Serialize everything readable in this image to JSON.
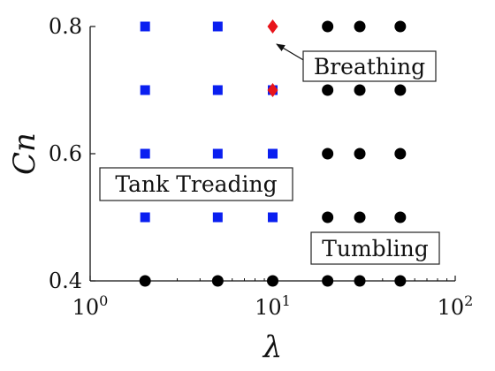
{
  "chart_data": {
    "type": "scatter",
    "xlabel": "λ",
    "ylabel": "Cn",
    "x_scale": "log",
    "xlim": [
      1,
      100
    ],
    "ylim": [
      0.4,
      0.8
    ],
    "grid": false,
    "x_ticks": [
      {
        "value": 1,
        "base": "10",
        "exp": "0"
      },
      {
        "value": 10,
        "base": "10",
        "exp": "1"
      },
      {
        "value": 100,
        "base": "10",
        "exp": "2"
      }
    ],
    "y_ticks": [
      {
        "value": 0.4,
        "label": "0.4"
      },
      {
        "value": 0.6,
        "label": "0.6"
      },
      {
        "value": 0.8,
        "label": "0.8"
      }
    ],
    "series": [
      {
        "marker": "square",
        "color": "#0a1ff0",
        "points": [
          {
            "x": 2,
            "y": 0.8
          },
          {
            "x": 5,
            "y": 0.8
          },
          {
            "x": 2,
            "y": 0.7
          },
          {
            "x": 5,
            "y": 0.7
          },
          {
            "x": 10,
            "y": 0.7
          },
          {
            "x": 2,
            "y": 0.6
          },
          {
            "x": 5,
            "y": 0.6
          },
          {
            "x": 10,
            "y": 0.6
          },
          {
            "x": 2,
            "y": 0.5
          },
          {
            "x": 5,
            "y": 0.5
          },
          {
            "x": 10,
            "y": 0.5
          }
        ]
      },
      {
        "marker": "diamond",
        "color": "#e8141b",
        "points": [
          {
            "x": 10,
            "y": 0.8
          },
          {
            "x": 10,
            "y": 0.7
          }
        ]
      },
      {
        "marker": "circle",
        "color": "#000000",
        "points": [
          {
            "x": 20,
            "y": 0.8
          },
          {
            "x": 30,
            "y": 0.8
          },
          {
            "x": 50,
            "y": 0.8
          },
          {
            "x": 20,
            "y": 0.7
          },
          {
            "x": 30,
            "y": 0.7
          },
          {
            "x": 50,
            "y": 0.7
          },
          {
            "x": 20,
            "y": 0.6
          },
          {
            "x": 30,
            "y": 0.6
          },
          {
            "x": 50,
            "y": 0.6
          },
          {
            "x": 20,
            "y": 0.5
          },
          {
            "x": 30,
            "y": 0.5
          },
          {
            "x": 50,
            "y": 0.5
          },
          {
            "x": 2,
            "y": 0.4
          },
          {
            "x": 5,
            "y": 0.4
          },
          {
            "x": 10,
            "y": 0.4
          },
          {
            "x": 20,
            "y": 0.4
          },
          {
            "x": 30,
            "y": 0.4
          },
          {
            "x": 50,
            "y": 0.4
          }
        ]
      }
    ],
    "annotations": [
      {
        "text": "Breathing",
        "arrow_to": {
          "x": 10,
          "y": 0.8
        }
      },
      {
        "text": "Tank Treading"
      },
      {
        "text": "Tumbling"
      }
    ]
  }
}
